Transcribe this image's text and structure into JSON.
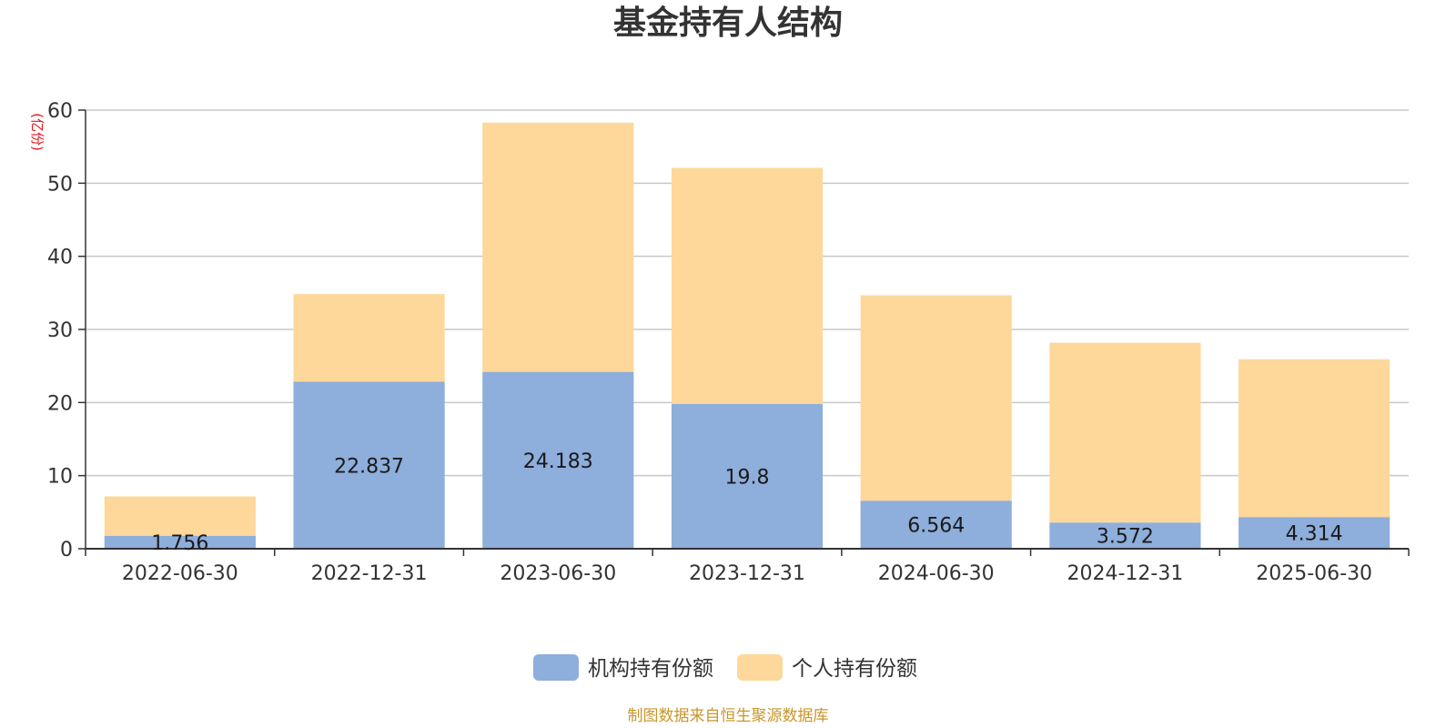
{
  "chart_data": {
    "type": "bar",
    "stacked": true,
    "title": "基金持有人结构",
    "unit": "(亿份)",
    "categories": [
      "2022-06-30",
      "2022-12-31",
      "2023-06-30",
      "2023-12-31",
      "2024-06-30",
      "2024-12-31",
      "2025-06-30"
    ],
    "series": [
      {
        "name": "机构持有份额",
        "color": "#8eaedb",
        "values": [
          1.756,
          22.837,
          24.183,
          19.8,
          6.564,
          3.572,
          4.314
        ],
        "labels": [
          "1.756",
          "22.837",
          "24.183",
          "19.8",
          "6.564",
          "3.572",
          "4.314"
        ]
      },
      {
        "name": "个人持有份额",
        "color": "#fdd89a",
        "values": [
          5.4,
          12.0,
          34.1,
          32.3,
          28.1,
          24.6,
          21.6
        ]
      }
    ],
    "ylim": [
      0,
      60
    ],
    "yticks": [
      0,
      10,
      20,
      30,
      40,
      50,
      60
    ],
    "grid": true,
    "legend_position": "bottom-center",
    "source": "制图数据来自恒生聚源数据库"
  }
}
